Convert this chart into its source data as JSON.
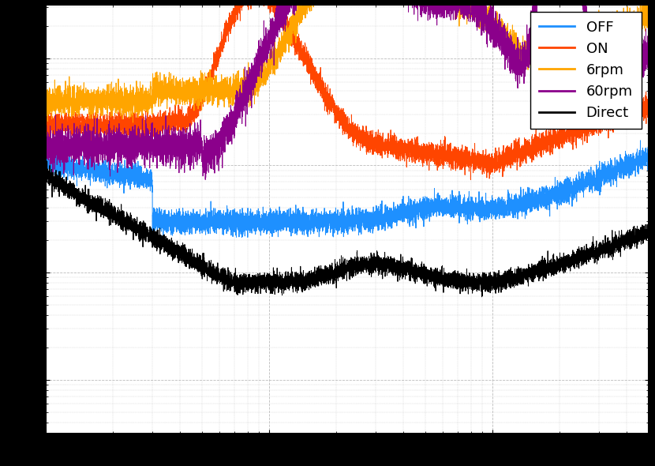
{
  "background_color": "#ffffff",
  "grid_color": "#bbbbbb",
  "lines": [
    {
      "label": "OFF",
      "color": "#1E90FF",
      "lw": 0.7
    },
    {
      "label": "ON",
      "color": "#FF4500",
      "lw": 0.7
    },
    {
      "label": "6rpm",
      "color": "#FFA500",
      "lw": 0.7
    },
    {
      "label": "60rpm",
      "color": "#8B008B",
      "lw": 0.7
    },
    {
      "label": "Direct",
      "color": "#000000",
      "lw": 0.7
    }
  ],
  "xlim_log": [
    0,
    2.699
  ],
  "ylim_log": [
    -10.5,
    -6.5
  ],
  "legend_fontsize": 13,
  "legend_loc": "upper right"
}
